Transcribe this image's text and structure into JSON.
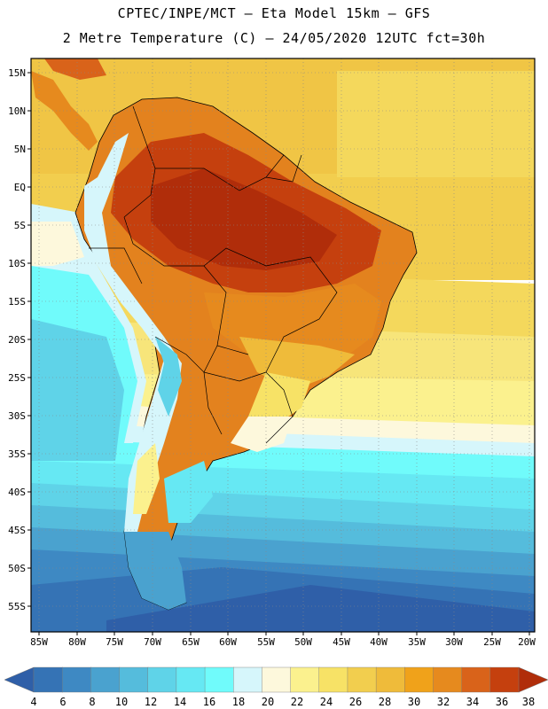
{
  "header": {
    "line1": "CPTEC/INPE/MCT –  Eta Model 15km – GFS",
    "line2": "2 Metre Temperature (C) – 24/05/2020 12UTC fct=30h"
  },
  "map": {
    "lat_labels": [
      "15N",
      "10N",
      "5N",
      "EQ",
      "5S",
      "10S",
      "15S",
      "20S",
      "25S",
      "30S",
      "35S",
      "40S",
      "45S",
      "50S",
      "55S"
    ],
    "lon_labels": [
      "85W",
      "80W",
      "75W",
      "70W",
      "65W",
      "60W",
      "55W",
      "50W",
      "45W",
      "40W",
      "35W",
      "30W",
      "25W",
      "20W"
    ]
  },
  "colorbar": {
    "values": [
      "4",
      "6",
      "8",
      "10",
      "12",
      "14",
      "16",
      "18",
      "20",
      "22",
      "24",
      "26",
      "28",
      "30",
      "32",
      "34",
      "36",
      "38"
    ],
    "colors": [
      "#2f5fa8",
      "#3573b5",
      "#3e89c3",
      "#4aa2cf",
      "#55bcdc",
      "#5fd3e8",
      "#66e8f3",
      "#70fbfb",
      "#d6f6fb",
      "#fdf8dc",
      "#fbf18e",
      "#f7e266",
      "#f2ce4e",
      "#efbb3a",
      "#f0a21a",
      "#e68a1e",
      "#d9631a",
      "#c5400e",
      "#b02d0a"
    ]
  }
}
